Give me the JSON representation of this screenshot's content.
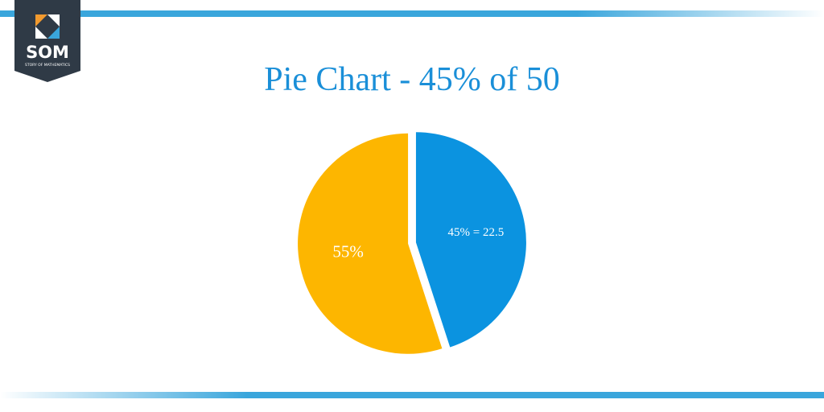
{
  "logo": {
    "text": "SOM",
    "subtitle": "STORY OF MATHEMATICS"
  },
  "chart_data": {
    "type": "pie",
    "title": "Pie Chart - 45% of 50",
    "values": [
      45,
      55
    ],
    "value_labels": [
      "45% = 22.5",
      "55%"
    ],
    "colors": [
      "#0b93e0",
      "#fdb600"
    ]
  }
}
